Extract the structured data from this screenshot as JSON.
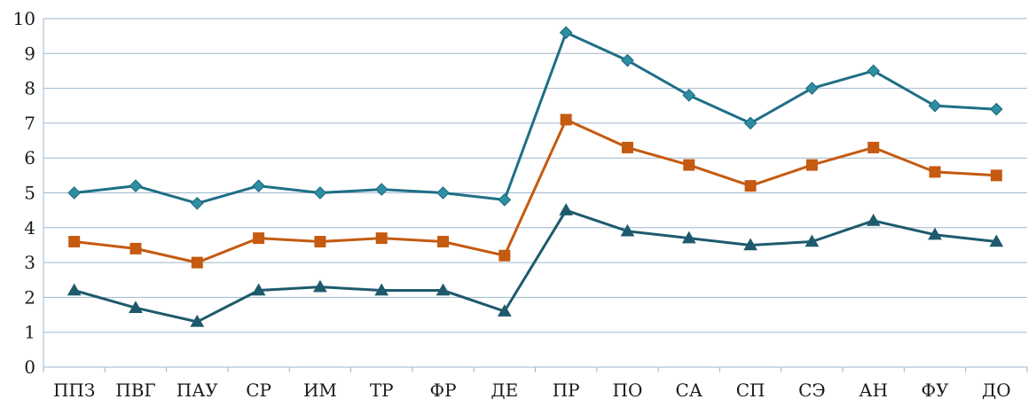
{
  "chart_data": {
    "type": "line",
    "title": "",
    "xlabel": "",
    "ylabel": "",
    "categories": [
      "ППЗ",
      "ПВГ",
      "ПАУ",
      "СР",
      "ИМ",
      "ТР",
      "ФР",
      "ДЕ",
      "ПР",
      "ПО",
      "СА",
      "СП",
      "СЭ",
      "АН",
      "ФУ",
      "ДО"
    ],
    "ylim": [
      0,
      10
    ],
    "yticks": [
      "0",
      "1",
      "2",
      "3",
      "4",
      "5",
      "6",
      "7",
      "8",
      "9",
      "10"
    ],
    "grid": true,
    "legend": "none",
    "series": [
      {
        "marker": "diamond",
        "color": "#1f6f86",
        "values": [
          5.0,
          5.2,
          4.7,
          5.2,
          5.0,
          5.1,
          5.0,
          4.8,
          9.6,
          8.8,
          7.8,
          7.0,
          8.0,
          8.5,
          7.5,
          7.4
        ]
      },
      {
        "marker": "square",
        "color": "#c55a11",
        "values": [
          3.6,
          3.4,
          3.0,
          3.7,
          3.6,
          3.7,
          3.6,
          3.2,
          7.1,
          6.3,
          5.8,
          5.2,
          5.8,
          6.3,
          5.6,
          5.5
        ]
      },
      {
        "marker": "triangle",
        "color": "#1e5a6d",
        "values": [
          2.2,
          1.7,
          1.3,
          2.2,
          2.3,
          2.2,
          2.2,
          1.6,
          4.5,
          3.9,
          3.7,
          3.5,
          3.6,
          4.2,
          3.8,
          3.6
        ]
      }
    ]
  }
}
